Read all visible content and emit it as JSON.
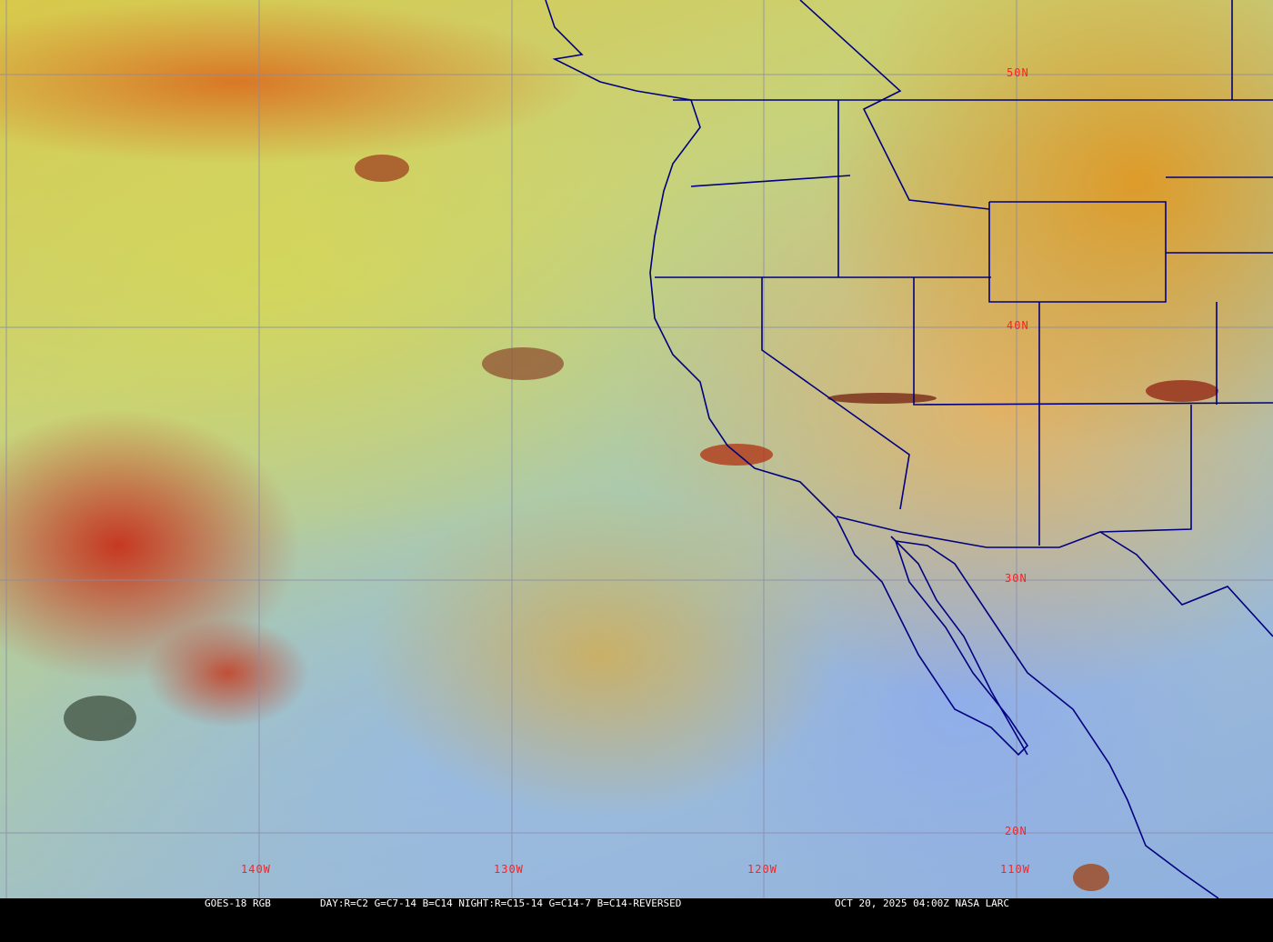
{
  "caption": {
    "product": "GOES-18 RGB",
    "recipe": "DAY:R=C2 G=C7-14 B=C14 NIGHT:R=C15-14 G=C14-7 B=C14-REVERSED",
    "timestamp": "OCT 20, 2025 04:00Z NASA LARC"
  },
  "grid": {
    "latitude_labels": [
      "50N",
      "40N",
      "30N",
      "20N"
    ],
    "longitude_labels": [
      "140W",
      "130W",
      "120W",
      "110W"
    ],
    "label_color": "#ff2020",
    "grid_color": "#8080a0",
    "border_color": "#000080"
  }
}
